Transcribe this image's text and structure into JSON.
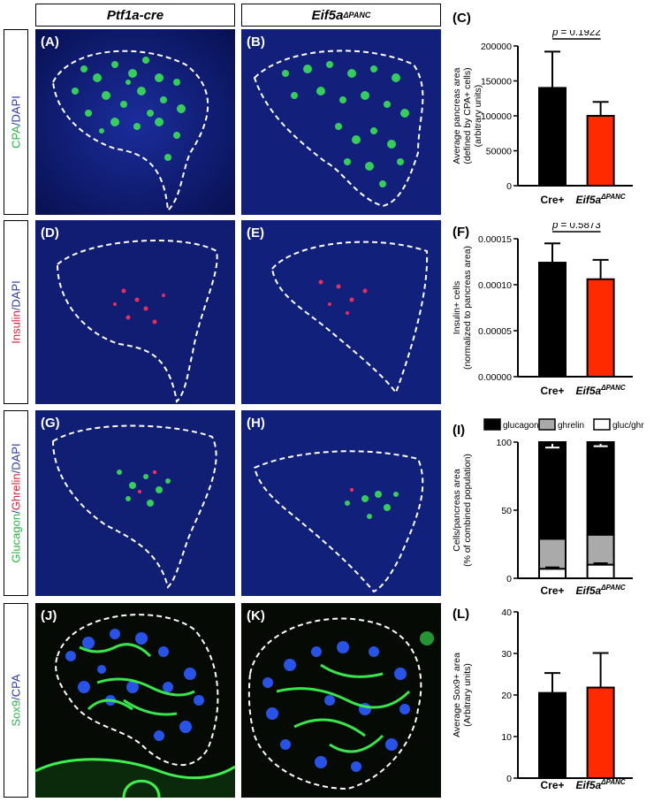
{
  "columns": {
    "left": "Ptf1a-cre",
    "right_base": "Eif5a",
    "right_sup": "ΔPANC"
  },
  "rows": [
    {
      "stain_parts": [
        {
          "text": "CPA",
          "color": "#2db34a"
        },
        {
          "text": "/DAPI",
          "color": "#2a3aa0"
        }
      ]
    },
    {
      "stain_parts": [
        {
          "text": "Insulin",
          "color": "#d6263a"
        },
        {
          "text": "/DAPI",
          "color": "#2a3aa0"
        }
      ]
    },
    {
      "stain_parts": [
        {
          "text": "Glucagon",
          "color": "#2db34a"
        },
        {
          "text": "/",
          "color": "#2a3aa0"
        },
        {
          "text": "Ghrelin",
          "color": "#d6263a"
        },
        {
          "text": "/DAPI",
          "color": "#2a3aa0"
        }
      ]
    },
    {
      "stain_parts": [
        {
          "text": "Sox9",
          "color": "#2db34a"
        },
        {
          "text": "/CPA",
          "color": "#2a3aa0"
        }
      ]
    }
  ],
  "panel_labels": {
    "A": "(A)",
    "B": "(B)",
    "C": "(C)",
    "D": "(D)",
    "E": "(E)",
    "F": "(F)",
    "G": "(G)",
    "H": "(H)",
    "I": "(I)",
    "J": "(J)",
    "K": "(K)",
    "L": "(L)"
  },
  "chart_data": [
    {
      "type": "bar",
      "panel": "C",
      "categories": [
        "Cre+",
        "Eif5a"
      ],
      "category_sup": [
        "",
        "ΔPANC"
      ],
      "values": [
        140000,
        100000
      ],
      "errors": [
        52000,
        20000
      ],
      "colors": [
        "#000000",
        "#ff2a00"
      ],
      "ylim": [
        0,
        200000
      ],
      "yticks": [
        "0",
        "50000",
        "100000",
        "150000",
        "200000"
      ],
      "ylabel_lines": [
        "Average pancreas area",
        "(defined by CPA+ cells)",
        "(arbitrary units)"
      ],
      "annotation": {
        "p_label": "p",
        "p_value": "= 0.1922"
      }
    },
    {
      "type": "bar",
      "panel": "F",
      "categories": [
        "Cre+",
        "Eif5a"
      ],
      "category_sup": [
        "",
        "ΔPANC"
      ],
      "values": [
        0.000124,
        0.000106
      ],
      "errors": [
        2.1e-05,
        2.1e-05
      ],
      "colors": [
        "#000000",
        "#ff2a00"
      ],
      "ylim": [
        0,
        0.00015
      ],
      "yticks": [
        "0.00000",
        "0.00005",
        "0.00010",
        "0.00015"
      ],
      "ylabel_lines": [
        "Insulin+ cells",
        "(normalized to pancreas area)"
      ],
      "annotation": {
        "p_label": "p",
        "p_value": "= 0.5873"
      }
    },
    {
      "type": "stacked-bar",
      "panel": "I",
      "categories": [
        "Cre+",
        "Eif5a"
      ],
      "category_sup": [
        "",
        "ΔPANC"
      ],
      "legend": [
        {
          "name": "glucagon",
          "color": "#000000"
        },
        {
          "name": "ghrelin",
          "color": "#aaaaaa"
        },
        {
          "name": "gluc/ghr",
          "color": "#ffffff"
        }
      ],
      "series": [
        {
          "name": "gluc/ghr",
          "values": [
            7,
            10
          ]
        },
        {
          "name": "ghrelin",
          "values": [
            22,
            22
          ]
        },
        {
          "name": "glucagon",
          "values": [
            71,
            68
          ]
        }
      ],
      "errors_top": [
        4,
        3
      ],
      "errors_mid": [
        2,
        2
      ],
      "errors_low": [
        1,
        1
      ],
      "ylim": [
        0,
        100
      ],
      "yticks": [
        "0",
        "50",
        "100"
      ],
      "ylabel_lines": [
        "Cells/pancreas area",
        "(% of combined population)"
      ]
    },
    {
      "type": "bar",
      "panel": "L",
      "categories": [
        "Cre+",
        "Eif5a"
      ],
      "category_sup": [
        "",
        "ΔPANC"
      ],
      "values": [
        20.5,
        21.8
      ],
      "errors": [
        4.8,
        8.3
      ],
      "colors": [
        "#000000",
        "#ff2a00"
      ],
      "ylim": [
        0,
        40
      ],
      "yticks": [
        "0",
        "10",
        "20",
        "30",
        "40"
      ],
      "ylabel_lines": [
        "Average Sox9+ area",
        "(Arbitrary units)"
      ]
    }
  ]
}
